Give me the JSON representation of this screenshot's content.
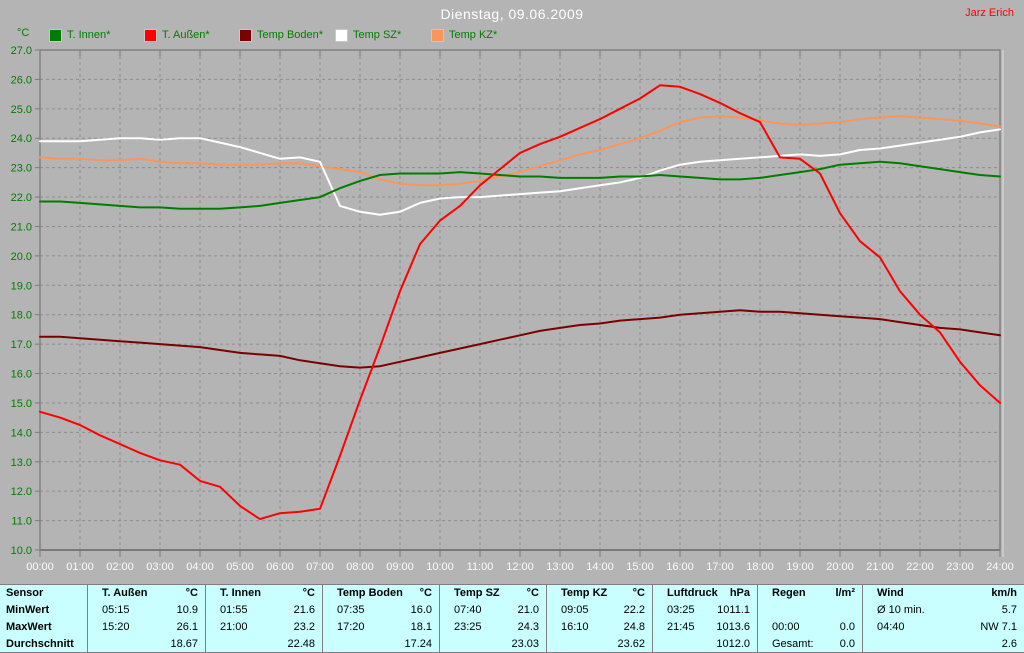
{
  "header": {
    "title": "Dienstag, 09.06.2009",
    "author": "Jarz Erich"
  },
  "chart_data": {
    "type": "line",
    "title": "Dienstag, 09.06.2009",
    "xlabel": "",
    "ylabel": "°C",
    "xlim": [
      0,
      24
    ],
    "ylim": [
      10,
      27
    ],
    "grid": true,
    "legend_position": "top",
    "x_tick_labels": [
      "00:00",
      "01:00",
      "02:00",
      "03:00",
      "04:00",
      "05:00",
      "06:00",
      "07:00",
      "08:00",
      "09:00",
      "10:00",
      "11:00",
      "12:00",
      "13:00",
      "14:00",
      "15:00",
      "16:00",
      "17:00",
      "18:00",
      "19:00",
      "20:00",
      "21:00",
      "22:00",
      "23:00",
      "24:00"
    ],
    "y_ticks": [
      10,
      11,
      12,
      13,
      14,
      15,
      16,
      17,
      18,
      19,
      20,
      21,
      22,
      23,
      24,
      25,
      26,
      27
    ],
    "x_hours": [
      0,
      0.5,
      1,
      1.5,
      2,
      2.5,
      3,
      3.5,
      4,
      4.5,
      5,
      5.5,
      6,
      6.5,
      7,
      7.5,
      8,
      8.5,
      9,
      9.5,
      10,
      10.5,
      11,
      11.5,
      12,
      12.5,
      13,
      13.5,
      14,
      14.5,
      15,
      15.5,
      16,
      16.5,
      17,
      17.5,
      18,
      18.5,
      19,
      19.5,
      20,
      20.5,
      21,
      21.5,
      22,
      22.5,
      23,
      23.5,
      24
    ],
    "series": [
      {
        "name": "T. Innen*",
        "color": "#007d00",
        "values": [
          21.85,
          21.85,
          21.8,
          21.75,
          21.7,
          21.65,
          21.65,
          21.6,
          21.6,
          21.6,
          21.65,
          21.7,
          21.8,
          21.9,
          22.0,
          22.3,
          22.55,
          22.75,
          22.8,
          22.8,
          22.8,
          22.85,
          22.8,
          22.75,
          22.7,
          22.7,
          22.65,
          22.65,
          22.65,
          22.7,
          22.7,
          22.75,
          22.7,
          22.65,
          22.6,
          22.6,
          22.65,
          22.75,
          22.85,
          22.95,
          23.1,
          23.15,
          23.2,
          23.15,
          23.05,
          22.95,
          22.85,
          22.75,
          22.7
        ]
      },
      {
        "name": "T. Außen*",
        "color": "#ff0000",
        "values": [
          14.7,
          14.5,
          14.25,
          13.9,
          13.6,
          13.3,
          13.05,
          12.9,
          12.35,
          12.15,
          11.5,
          11.05,
          11.25,
          11.3,
          11.4,
          13.2,
          15.1,
          16.9,
          18.8,
          20.4,
          21.2,
          21.7,
          22.4,
          22.95,
          23.5,
          23.8,
          24.05,
          24.35,
          24.65,
          25.0,
          25.35,
          25.8,
          25.75,
          25.5,
          25.2,
          24.85,
          24.55,
          23.35,
          23.3,
          22.8,
          21.45,
          20.5,
          19.95,
          18.8,
          18.0,
          17.4,
          16.4,
          15.6,
          15.0
        ]
      },
      {
        "name": "Temp Boden*",
        "color": "#7a0000",
        "values": [
          17.25,
          17.25,
          17.2,
          17.15,
          17.1,
          17.05,
          17.0,
          16.95,
          16.9,
          16.8,
          16.7,
          16.65,
          16.6,
          16.45,
          16.35,
          16.25,
          16.2,
          16.25,
          16.4,
          16.55,
          16.7,
          16.85,
          17.0,
          17.15,
          17.3,
          17.45,
          17.55,
          17.65,
          17.7,
          17.8,
          17.85,
          17.9,
          18.0,
          18.05,
          18.1,
          18.15,
          18.1,
          18.1,
          18.05,
          18.0,
          17.95,
          17.9,
          17.85,
          17.75,
          17.65,
          17.55,
          17.5,
          17.4,
          17.3
        ]
      },
      {
        "name": "Temp SZ*",
        "color": "#ffffff",
        "values": [
          23.9,
          23.9,
          23.9,
          23.95,
          24.0,
          24.0,
          23.95,
          24.0,
          24.0,
          23.85,
          23.7,
          23.5,
          23.3,
          23.35,
          23.2,
          21.7,
          21.5,
          21.4,
          21.5,
          21.8,
          21.95,
          22.0,
          22.0,
          22.05,
          22.1,
          22.15,
          22.2,
          22.3,
          22.4,
          22.5,
          22.65,
          22.9,
          23.1,
          23.2,
          23.25,
          23.3,
          23.35,
          23.4,
          23.45,
          23.4,
          23.45,
          23.6,
          23.65,
          23.75,
          23.85,
          23.95,
          24.05,
          24.2,
          24.3
        ]
      },
      {
        "name": "Temp KZ*",
        "color": "#f8965c",
        "values": [
          23.35,
          23.3,
          23.3,
          23.25,
          23.25,
          23.3,
          23.2,
          23.15,
          23.15,
          23.1,
          23.1,
          23.1,
          23.15,
          23.15,
          23.05,
          22.95,
          22.85,
          22.6,
          22.45,
          22.4,
          22.4,
          22.45,
          22.55,
          22.7,
          22.85,
          23.05,
          23.25,
          23.45,
          23.6,
          23.8,
          24.0,
          24.25,
          24.55,
          24.7,
          24.75,
          24.7,
          24.6,
          24.5,
          24.45,
          24.5,
          24.55,
          24.65,
          24.7,
          24.75,
          24.7,
          24.65,
          24.6,
          24.5,
          24.4
        ]
      }
    ]
  },
  "table": {
    "row_labels": [
      "Sensor",
      "MinWert",
      "MaxWert",
      "Durchschnitt"
    ],
    "columns": [
      {
        "name": "T. Außen",
        "unit": "°C",
        "min_time": "05:15",
        "min": "10.9",
        "max_time": "15:20",
        "max": "26.1",
        "avg_label": "",
        "avg": "18.67"
      },
      {
        "name": "T. Innen",
        "unit": "°C",
        "min_time": "01:55",
        "min": "21.6",
        "max_time": "21:00",
        "max": "23.2",
        "avg_label": "",
        "avg": "22.48"
      },
      {
        "name": "Temp Boden",
        "unit": "°C",
        "min_time": "07:35",
        "min": "16.0",
        "max_time": "17:20",
        "max": "18.1",
        "avg_label": "",
        "avg": "17.24"
      },
      {
        "name": "Temp SZ",
        "unit": "°C",
        "min_time": "07:40",
        "min": "21.0",
        "max_time": "23:25",
        "max": "24.3",
        "avg_label": "",
        "avg": "23.03"
      },
      {
        "name": "Temp KZ",
        "unit": "°C",
        "min_time": "09:05",
        "min": "22.2",
        "max_time": "16:10",
        "max": "24.8",
        "avg_label": "",
        "avg": "23.62"
      },
      {
        "name": "Luftdruck",
        "unit": "hPa",
        "min_time": "03:25",
        "min": "1011.1",
        "max_time": "21:45",
        "max": "1013.6",
        "avg_label": "",
        "avg": "1012.0"
      },
      {
        "name": "Regen",
        "unit": "l/m²",
        "min_time": "",
        "min": "",
        "max_time": "00:00",
        "max": "0.0",
        "avg_label": "Gesamt:",
        "avg": "0.0"
      },
      {
        "name": "Wind",
        "unit": "km/h",
        "min_time": "Ø 10 min.",
        "min": "5.7",
        "max_time": "04:40",
        "max": "NW 7.1",
        "avg_label": "",
        "avg": "2.6"
      }
    ]
  }
}
